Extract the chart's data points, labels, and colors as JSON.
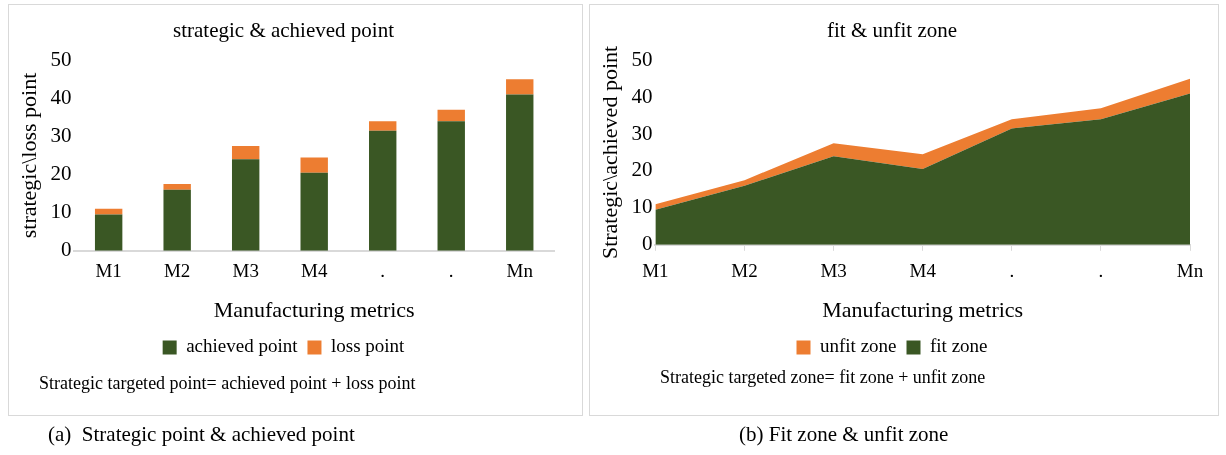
{
  "chart_data": [
    {
      "type": "bar",
      "title": "strategic & achieved point",
      "xlabel": "Manufacturing metrics",
      "ylabel": "strategic\\loss point",
      "categories": [
        "M1",
        "M2",
        "M3",
        "M4",
        ".",
        ".",
        "Mn"
      ],
      "stacked": true,
      "series": [
        {
          "name": "achieved point",
          "color": "#3a5724",
          "values": [
            9.5,
            16,
            24,
            20.5,
            31.5,
            34,
            41
          ]
        },
        {
          "name": "loss point",
          "color": "#ed7d31",
          "values": [
            1.5,
            1.5,
            3.5,
            4,
            2.5,
            3,
            4
          ]
        }
      ],
      "ylim": [
        0,
        50
      ],
      "yticks": [
        0,
        10,
        20,
        30,
        40,
        50
      ],
      "grid": false,
      "legend": "bottom",
      "annotations": [
        "Strategic targeted point= achieved point + loss point",
        "(a)  Strategic point & achieved point"
      ]
    },
    {
      "type": "area",
      "title": "fit & unfit zone",
      "xlabel": "Manufacturing metrics",
      "ylabel": "Strategic\\achieved point",
      "categories": [
        "M1",
        "M2",
        "M3",
        "M4",
        ".",
        ".",
        "Mn"
      ],
      "stacked": true,
      "series": [
        {
          "name": "fit zone",
          "color": "#3a5724",
          "values": [
            9.5,
            16,
            24,
            20.5,
            31.5,
            34,
            41
          ]
        },
        {
          "name": "unfit zone",
          "color": "#ed7d31",
          "values": [
            1.5,
            1.5,
            3.5,
            4,
            2.5,
            3,
            4
          ]
        }
      ],
      "ylim": [
        0,
        50
      ],
      "yticks": [
        0,
        10,
        20,
        30,
        40,
        50
      ],
      "grid": false,
      "legend": "bottom",
      "annotations": [
        "Strategic targeted zone= fit zone + unfit zone",
        "(b) Fit zone & unfit zone"
      ]
    }
  ]
}
